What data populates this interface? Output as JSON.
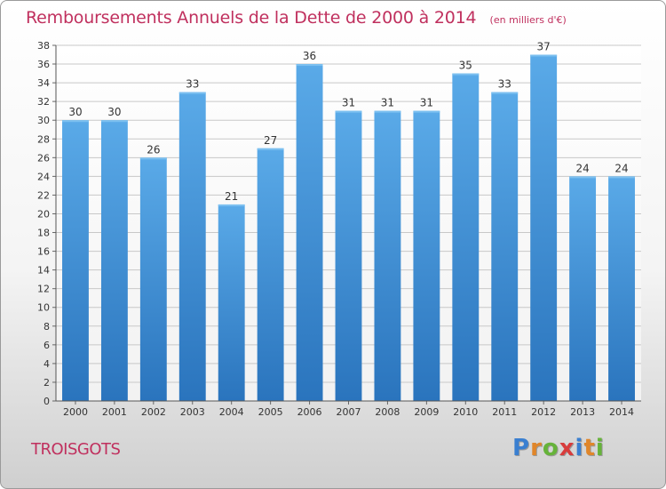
{
  "header": {
    "title": "Remboursements Annuels de la Dette de 2000 à 2014",
    "unit": "(en milliers d'€)"
  },
  "footer": {
    "city": "TROISGOTS",
    "logo_letters": [
      {
        "char": "P",
        "color": "#3a7fd0"
      },
      {
        "char": "r",
        "color": "#e0862a"
      },
      {
        "char": "o",
        "color": "#66b33a"
      },
      {
        "char": "x",
        "color": "#d83c3c"
      },
      {
        "char": "i",
        "color": "#3a7fd0"
      },
      {
        "char": "t",
        "color": "#e0862a"
      },
      {
        "char": "i",
        "color": "#66b33a"
      }
    ]
  },
  "chart_data": {
    "type": "bar",
    "title": "Remboursements Annuels de la Dette de 2000 à 2014",
    "subtitle": "(en milliers d'€)",
    "categories": [
      "2000",
      "2001",
      "2002",
      "2003",
      "2004",
      "2005",
      "2006",
      "2007",
      "2008",
      "2009",
      "2010",
      "2011",
      "2012",
      "2013",
      "2014"
    ],
    "values": [
      30,
      30,
      26,
      33,
      21,
      27,
      36,
      31,
      31,
      31,
      35,
      33,
      37,
      24,
      24
    ],
    "xlabel": "",
    "ylabel": "",
    "ylim": [
      0,
      38
    ],
    "yticks": [
      0,
      2,
      4,
      6,
      8,
      10,
      12,
      14,
      16,
      18,
      20,
      22,
      24,
      26,
      28,
      30,
      32,
      34,
      36,
      38
    ],
    "grid": true,
    "bar_color": "#3d8fd8",
    "grid_color": "#c8c8c8"
  }
}
